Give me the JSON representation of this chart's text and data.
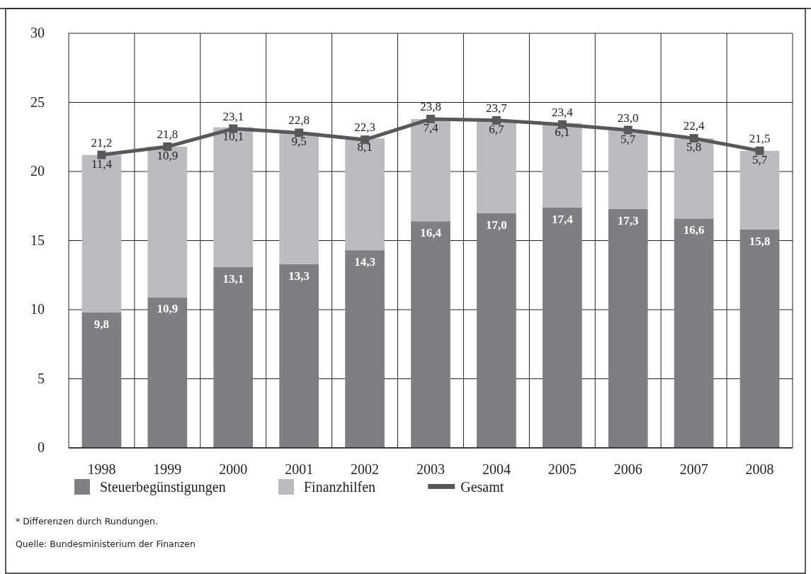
{
  "chart_data": {
    "type": "bar",
    "stacked": true,
    "categories": [
      "1998",
      "1999",
      "2000",
      "2001",
      "2002",
      "2003",
      "2004",
      "2005",
      "2006",
      "2007",
      "2008"
    ],
    "series": [
      {
        "name": "Steuerbegünstigungen",
        "color": "#7f7f83",
        "values": [
          9.8,
          10.9,
          13.1,
          13.3,
          14.3,
          16.4,
          17.0,
          17.4,
          17.3,
          16.6,
          15.8
        ],
        "value_labels": [
          "9,8",
          "10,9",
          "13,1",
          "13,3",
          "14,3",
          "16,4",
          "17,0",
          "17,4",
          "17,3",
          "16,6",
          "15,8"
        ]
      },
      {
        "name": "Finanzhilfen",
        "color": "#bcbcc0",
        "values": [
          11.4,
          10.9,
          10.1,
          9.5,
          8.1,
          7.4,
          6.7,
          6.1,
          5.7,
          5.8,
          5.7
        ],
        "value_labels": [
          "11,4",
          "10,9",
          "10,1",
          "9,5",
          "8,1",
          "7,4",
          "6,7",
          "6,1",
          "5,7",
          "5,8",
          "5,7"
        ]
      },
      {
        "name": "Gesamt",
        "type": "line",
        "color": "#58585a",
        "marker": "square",
        "values": [
          21.2,
          21.8,
          23.1,
          22.8,
          22.3,
          23.8,
          23.7,
          23.4,
          23.0,
          22.4,
          21.5
        ],
        "value_labels": [
          "21,2",
          "21,8",
          "23,1",
          "22,8",
          "22,3",
          "23,8",
          "23,7",
          "23,4",
          "23,0",
          "22,4",
          "21,5"
        ]
      }
    ],
    "ylim": [
      0,
      30
    ],
    "yticks": [
      0,
      5,
      10,
      15,
      20,
      25,
      30
    ],
    "grid": true,
    "legend": "bottom",
    "annotations": [
      "* Differenzen durch Rundungen.",
      "Quelle: Bundesministerium der Finanzen"
    ]
  }
}
